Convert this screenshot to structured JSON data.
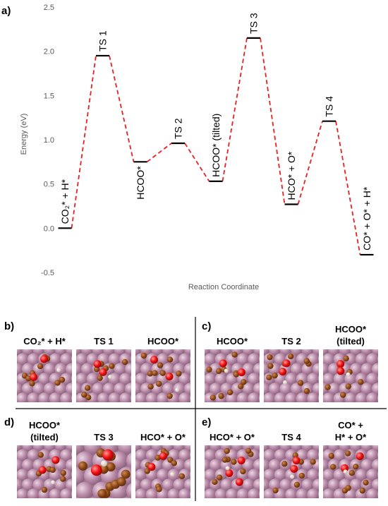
{
  "panel_a": {
    "letter": "a)",
    "chart_data": {
      "type": "line",
      "ylabel": "Energy (eV)",
      "xlabel": "Reaction Coordinate",
      "ylim": [
        -0.5,
        2.5
      ],
      "yticks": [
        "-0.5",
        "0.0",
        "0.5",
        "1.0",
        "1.5",
        "2.0",
        "2.5"
      ],
      "ytick_values": [
        -0.5,
        0.0,
        0.5,
        1.0,
        1.5,
        2.0,
        2.5
      ],
      "line_color": "#e82020",
      "line_style": "dashed",
      "grid": false,
      "states": [
        {
          "label": "CO₂* + H*",
          "energy": 0.0,
          "label_pos": "above"
        },
        {
          "label": "TS 1",
          "energy": 1.95,
          "label_pos": "above"
        },
        {
          "label": "HCOO*",
          "energy": 0.75,
          "label_pos": "below"
        },
        {
          "label": "TS 2",
          "energy": 0.96,
          "label_pos": "above"
        },
        {
          "label": "HCOO* (tilted)",
          "energy": 0.53,
          "label_pos": "above"
        },
        {
          "label": "TS 3",
          "energy": 2.15,
          "label_pos": "above"
        },
        {
          "label": "HCO* + O*",
          "energy": 0.27,
          "label_pos": "above"
        },
        {
          "label": "TS 4",
          "energy": 1.21,
          "label_pos": "above"
        },
        {
          "label": "CO* + O* + H*",
          "energy": -0.3,
          "label_pos": "above"
        }
      ]
    }
  },
  "panels": [
    {
      "letter": "b)",
      "titles": [
        [
          "CO₂* + H*"
        ],
        [
          "TS 1"
        ],
        [
          "HCOO*"
        ]
      ]
    },
    {
      "letter": "c)",
      "titles": [
        [
          "HCOO*"
        ],
        [
          "TS 2"
        ],
        [
          "HCOO*",
          "(tilted)"
        ]
      ]
    },
    {
      "letter": "d)",
      "titles": [
        [
          "HCOO*",
          "(tilted)"
        ],
        [
          "TS 3"
        ],
        [
          "HCO* + O*"
        ]
      ]
    },
    {
      "letter": "e)",
      "titles": [
        [
          "HCO* + O*"
        ],
        [
          "TS 4"
        ],
        [
          "CO* +",
          "H* + O*"
        ]
      ]
    }
  ],
  "colors": {
    "surface": "#b98aa8",
    "surface_light": "#e2c9d7",
    "carbon": "#8b4513",
    "oxygen": "#ee1111",
    "hydrogen": "#efe3da"
  }
}
